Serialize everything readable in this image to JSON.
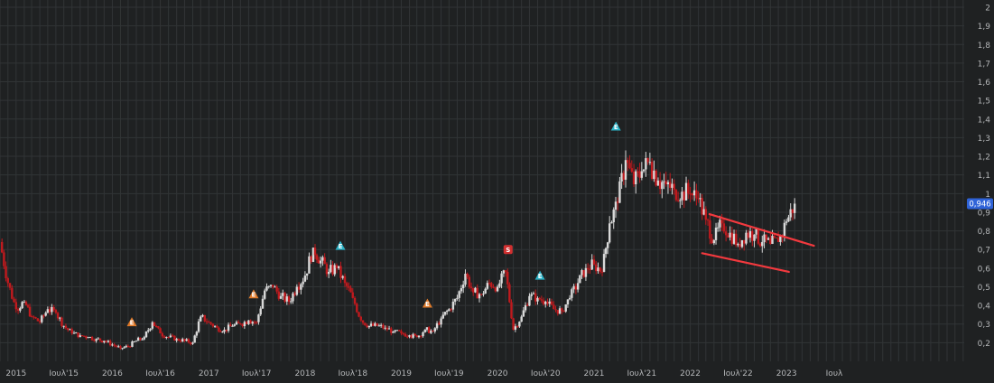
{
  "colors": {
    "background": "#1f2122",
    "grid": "#313436",
    "axis_text": "#b4b6b8",
    "up_candle": "#d9d9d9",
    "down_candle": "#c01a1e",
    "channel": "#f2393e",
    "price_badge": "#2f63d8",
    "marker_dividend": "#2bb3c7",
    "marker_earnings": "#e07a2a",
    "marker_split": "#d03030"
  },
  "chart_data": {
    "type": "candlestick",
    "title": "",
    "xlabel": "",
    "ylabel": "",
    "xlim": [
      "2014-11-01",
      "2024-11-05"
    ],
    "ylim": [
      0.1,
      2.0
    ],
    "grid": true,
    "y_axis_position": "right",
    "y_ticks": [
      "0,2",
      "0,3",
      "0,4",
      "0,5",
      "0,6",
      "0,7",
      "0,8",
      "0,9",
      "1",
      "1,1",
      "1,2",
      "1,3",
      "1,4",
      "1,5",
      "1,6",
      "1,7",
      "1,8",
      "1,9",
      "2"
    ],
    "x_ticks": [
      {
        "date": "2015-01-01",
        "label": "2015"
      },
      {
        "date": "2015-07-01",
        "label": "Ιουλ'15"
      },
      {
        "date": "2016-01-01",
        "label": "2016"
      },
      {
        "date": "2016-07-01",
        "label": "Ιουλ'16"
      },
      {
        "date": "2017-01-01",
        "label": "2017"
      },
      {
        "date": "2017-07-01",
        "label": "Ιουλ'17"
      },
      {
        "date": "2018-01-01",
        "label": "2018"
      },
      {
        "date": "2018-07-01",
        "label": "Ιουλ'18"
      },
      {
        "date": "2019-01-01",
        "label": "2019"
      },
      {
        "date": "2019-07-01",
        "label": "Ιουλ'19"
      },
      {
        "date": "2020-01-01",
        "label": "2020"
      },
      {
        "date": "2020-07-01",
        "label": "Ιουλ'20"
      },
      {
        "date": "2021-01-01",
        "label": "2021"
      },
      {
        "date": "2021-07-01",
        "label": "Ιουλ'21"
      },
      {
        "date": "2022-01-01",
        "label": "2022"
      },
      {
        "date": "2022-07-01",
        "label": "Ιουλ'22"
      },
      {
        "date": "2023-01-01",
        "label": "2023"
      },
      {
        "date": "2023-07-01",
        "label": "Ιουλ"
      }
    ],
    "last_price_label": "0,946",
    "last_price": 0.946,
    "series": [
      {
        "values": [
          [
            "2014-11-01",
            0.74
          ],
          [
            "2014-12-01",
            0.52
          ],
          [
            "2015-01-01",
            0.38
          ],
          [
            "2015-02-01",
            0.42
          ],
          [
            "2015-03-01",
            0.34
          ],
          [
            "2015-04-01",
            0.31
          ],
          [
            "2015-05-01",
            0.38
          ],
          [
            "2015-06-01",
            0.36
          ],
          [
            "2015-07-01",
            0.29
          ],
          [
            "2015-08-01",
            0.25
          ],
          [
            "2015-09-01",
            0.24
          ],
          [
            "2015-10-01",
            0.23
          ],
          [
            "2015-11-01",
            0.22
          ],
          [
            "2015-12-01",
            0.21
          ],
          [
            "2016-01-01",
            0.19
          ],
          [
            "2016-02-01",
            0.17
          ],
          [
            "2016-03-01",
            0.18
          ],
          [
            "2016-04-01",
            0.21
          ],
          [
            "2016-05-01",
            0.23
          ],
          [
            "2016-06-01",
            0.31
          ],
          [
            "2016-07-01",
            0.25
          ],
          [
            "2016-08-01",
            0.23
          ],
          [
            "2016-09-01",
            0.22
          ],
          [
            "2016-10-01",
            0.21
          ],
          [
            "2016-11-01",
            0.2
          ],
          [
            "2016-12-01",
            0.34
          ],
          [
            "2017-01-01",
            0.31
          ],
          [
            "2017-02-01",
            0.28
          ],
          [
            "2017-03-01",
            0.27
          ],
          [
            "2017-04-01",
            0.29
          ],
          [
            "2017-05-01",
            0.3
          ],
          [
            "2017-06-01",
            0.32
          ],
          [
            "2017-07-01",
            0.31
          ],
          [
            "2017-08-01",
            0.48
          ],
          [
            "2017-09-01",
            0.5
          ],
          [
            "2017-10-01",
            0.45
          ],
          [
            "2017-11-01",
            0.42
          ],
          [
            "2017-12-01",
            0.5
          ],
          [
            "2018-01-01",
            0.56
          ],
          [
            "2018-02-01",
            0.71
          ],
          [
            "2018-03-01",
            0.64
          ],
          [
            "2018-04-01",
            0.58
          ],
          [
            "2018-05-01",
            0.6
          ],
          [
            "2018-06-01",
            0.52
          ],
          [
            "2018-07-01",
            0.44
          ],
          [
            "2018-08-01",
            0.32
          ],
          [
            "2018-09-01",
            0.29
          ],
          [
            "2018-10-01",
            0.29
          ],
          [
            "2018-11-01",
            0.28
          ],
          [
            "2018-12-01",
            0.26
          ],
          [
            "2019-01-01",
            0.25
          ],
          [
            "2019-02-01",
            0.24
          ],
          [
            "2019-03-01",
            0.23
          ],
          [
            "2019-04-01",
            0.27
          ],
          [
            "2019-05-01",
            0.26
          ],
          [
            "2019-06-01",
            0.33
          ],
          [
            "2019-07-01",
            0.38
          ],
          [
            "2019-08-01",
            0.44
          ],
          [
            "2019-09-01",
            0.57
          ],
          [
            "2019-10-01",
            0.47
          ],
          [
            "2019-11-01",
            0.46
          ],
          [
            "2019-12-01",
            0.52
          ],
          [
            "2020-01-01",
            0.5
          ],
          [
            "2020-02-01",
            0.58
          ],
          [
            "2020-03-01",
            0.27
          ],
          [
            "2020-04-01",
            0.34
          ],
          [
            "2020-05-01",
            0.45
          ],
          [
            "2020-06-01",
            0.44
          ],
          [
            "2020-07-01",
            0.42
          ],
          [
            "2020-08-01",
            0.38
          ],
          [
            "2020-09-01",
            0.37
          ],
          [
            "2020-10-01",
            0.44
          ],
          [
            "2020-11-01",
            0.52
          ],
          [
            "2020-12-01",
            0.6
          ],
          [
            "2021-01-01",
            0.62
          ],
          [
            "2021-02-01",
            0.58
          ],
          [
            "2021-03-01",
            0.84
          ],
          [
            "2021-04-01",
            0.95
          ],
          [
            "2021-05-01",
            1.18
          ],
          [
            "2021-06-01",
            1.05
          ],
          [
            "2021-07-01",
            1.12
          ],
          [
            "2021-08-01",
            1.17
          ],
          [
            "2021-09-01",
            1.07
          ],
          [
            "2021-10-01",
            1.05
          ],
          [
            "2021-11-01",
            1.02
          ],
          [
            "2021-12-01",
            1.01
          ],
          [
            "2022-01-01",
            1.0
          ],
          [
            "2022-02-01",
            0.97
          ],
          [
            "2022-03-01",
            0.86
          ],
          [
            "2022-04-01",
            0.75
          ],
          [
            "2022-05-01",
            0.84
          ],
          [
            "2022-06-01",
            0.79
          ],
          [
            "2022-07-01",
            0.73
          ],
          [
            "2022-08-01",
            0.79
          ],
          [
            "2022-09-01",
            0.78
          ],
          [
            "2022-10-01",
            0.74
          ],
          [
            "2022-11-01",
            0.73
          ],
          [
            "2022-12-01",
            0.74
          ],
          [
            "2023-01-01",
            0.85
          ],
          [
            "2023-02-01",
            0.946
          ]
        ]
      }
    ],
    "markers": [
      {
        "date": "2016-03-15",
        "value": 0.31,
        "letter": "E",
        "kind": "earnings"
      },
      {
        "date": "2017-06-20",
        "value": 0.46,
        "letter": "E",
        "kind": "earnings"
      },
      {
        "date": "2018-05-15",
        "value": 0.72,
        "letter": "E",
        "kind": "dividend"
      },
      {
        "date": "2019-04-10",
        "value": 0.41,
        "letter": "E",
        "kind": "earnings"
      },
      {
        "date": "2020-02-10",
        "value": 0.7,
        "letter": "S",
        "kind": "split"
      },
      {
        "date": "2020-06-10",
        "value": 0.56,
        "letter": "E",
        "kind": "dividend"
      },
      {
        "date": "2021-03-25",
        "value": 1.36,
        "letter": "E",
        "kind": "dividend"
      }
    ],
    "trendlines": [
      {
        "from": [
          "2022-03-15",
          0.89
        ],
        "to": [
          "2023-04-15",
          0.72
        ]
      },
      {
        "from": [
          "2022-02-15",
          0.68
        ],
        "to": [
          "2023-01-10",
          0.58
        ]
      }
    ]
  }
}
